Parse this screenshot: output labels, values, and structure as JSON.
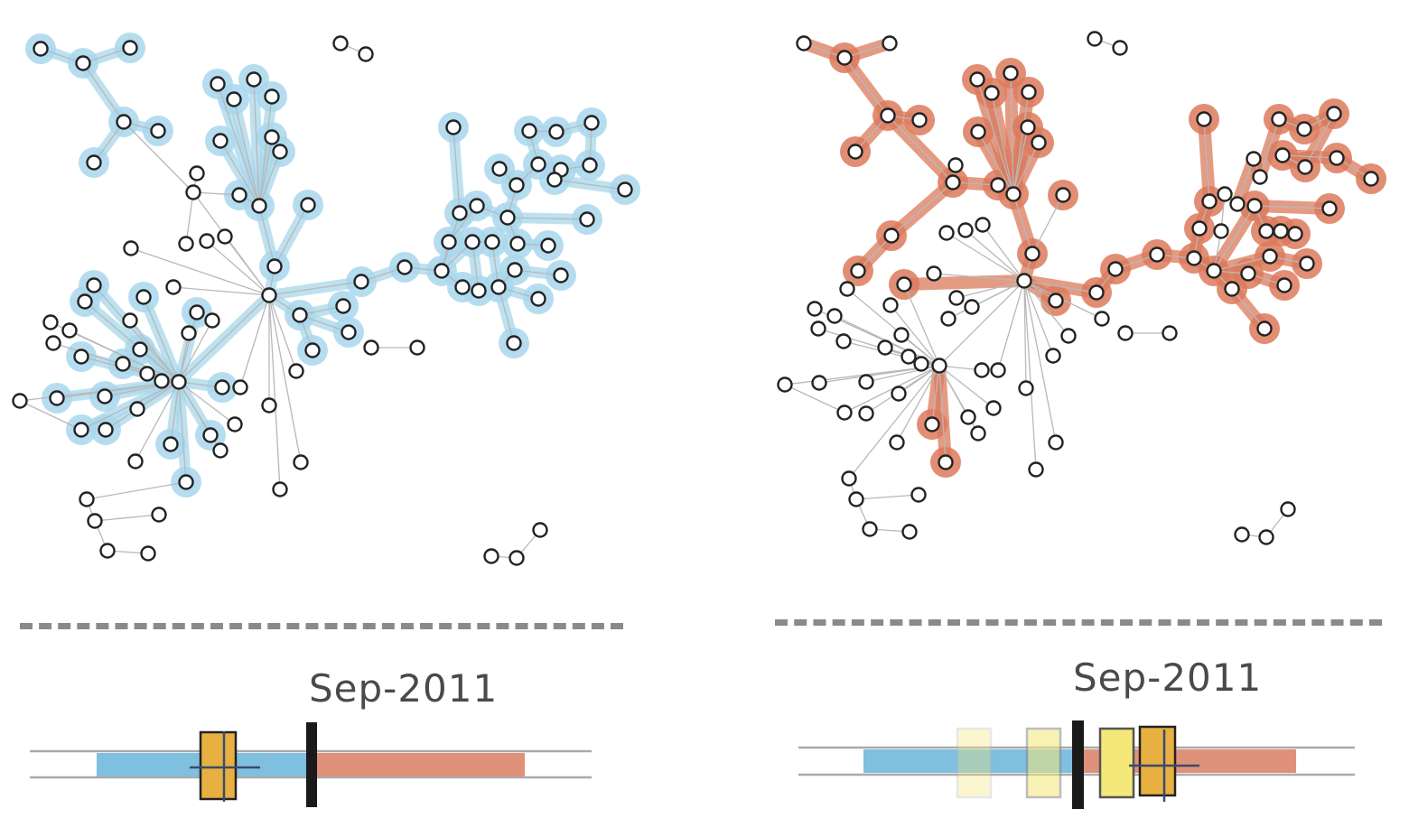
{
  "colors": {
    "past": "#7fbfdf",
    "past_halo": "#a9d7ec",
    "future": "#e0917a",
    "future_halo": "#dc7a5c",
    "node_fill": "#ffffff",
    "node_stroke": "#222222",
    "edge": "#b8b8b8",
    "cursor": "#1a1a1a",
    "window_strong": "#e8b040",
    "window_light": "#f5e87a"
  },
  "panels": [
    {
      "id": "left",
      "date_label": "Sep-2011",
      "highlight": "past"
    },
    {
      "id": "right",
      "date_label": "Sep-2011",
      "highlight": "future"
    }
  ]
}
